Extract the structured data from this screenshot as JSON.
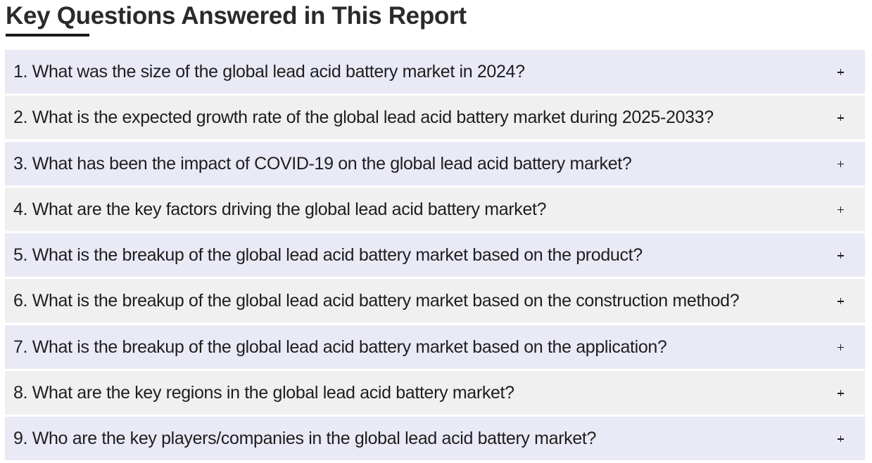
{
  "heading": {
    "title": "Key Questions Answered in This Report"
  },
  "faq": {
    "items": [
      {
        "question": "1. What was the size of the global lead acid battery market in 2024?",
        "icon": "plus-icon"
      },
      {
        "question": "2. What is the expected growth rate of the global lead acid battery market during 2025-2033?",
        "icon": "plus-icon"
      },
      {
        "question": "3. What has been the impact of COVID-19 on the global lead acid battery market?",
        "icon": "plus-icon"
      },
      {
        "question": "4. What are the key factors driving the global lead acid battery market?",
        "icon": "plus-icon"
      },
      {
        "question": "5. What is the breakup of the global lead acid battery market based on the product?",
        "icon": "plus-icon"
      },
      {
        "question": "6. What is the breakup of the global lead acid battery market based on the construction method?",
        "icon": "plus-icon"
      },
      {
        "question": "7. What is the breakup of the global lead acid battery market based on the application?",
        "icon": "plus-icon"
      },
      {
        "question": "8. What are the key regions in the global lead acid battery market?",
        "icon": "plus-icon"
      },
      {
        "question": "9. Who are the key players/companies in the global lead acid battery market?",
        "icon": "plus-icon"
      }
    ]
  },
  "colors": {
    "row_odd": "#e9eaf6",
    "row_even": "#f0f0f0",
    "text": "#1e1e1e"
  }
}
